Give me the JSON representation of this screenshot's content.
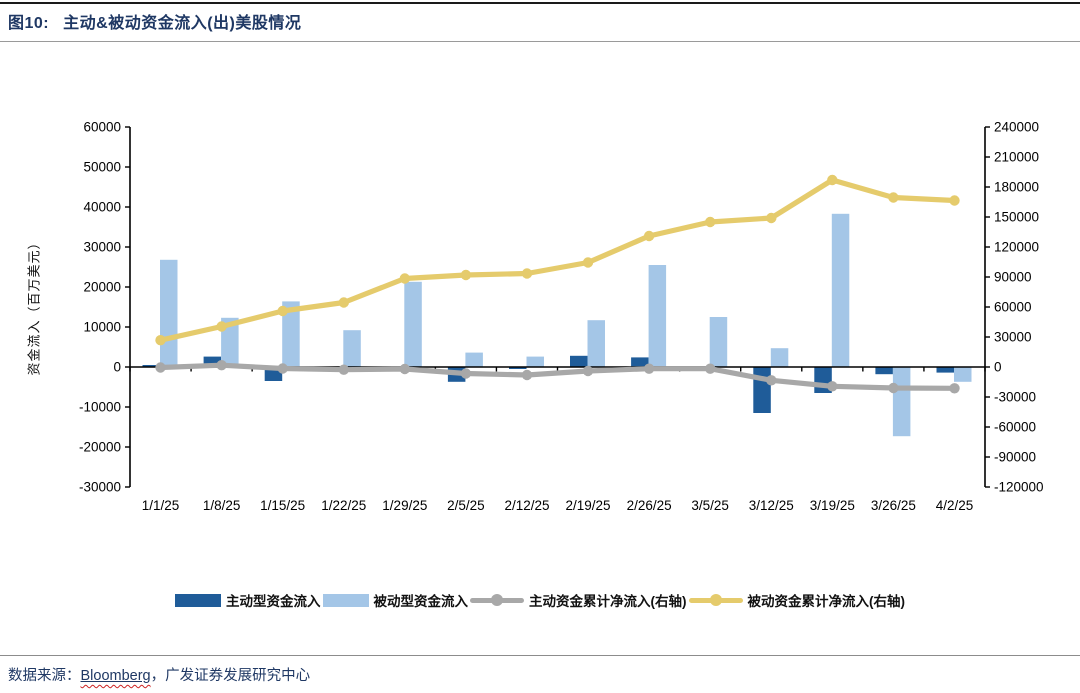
{
  "page": {
    "figure_label": "图10:",
    "title": "主动&被动资金流入(出)美股情况"
  },
  "footer": {
    "prefix": "数据来源：",
    "source": "Bloomberg",
    "suffix": "，广发证券发展研究中心"
  },
  "theme": {
    "title_color": "#1F3864",
    "active_bar_color": "#1F5C99",
    "passive_bar_color": "#A4C6E7",
    "active_line_color": "#A8A8A8",
    "passive_line_color": "#E5CB6C",
    "axis_color": "#000000"
  },
  "chart_data": {
    "type": "bar",
    "title": "主动&被动资金流入(出)美股情况",
    "categories": [
      "1/1/25",
      "1/8/25",
      "1/15/25",
      "1/22/25",
      "1/29/25",
      "2/5/25",
      "2/12/25",
      "2/19/25",
      "2/26/25",
      "3/5/25",
      "3/12/25",
      "3/19/25",
      "3/26/25",
      "4/2/25"
    ],
    "series": [
      {
        "name": "主动型资金流入",
        "type": "bar",
        "axis": "left",
        "color": "#1F5C99",
        "values": [
          500,
          2600,
          -3500,
          -800,
          -300,
          -3700,
          -500,
          2800,
          2400,
          -500,
          -11500,
          -6500,
          -1800,
          -1400
        ]
      },
      {
        "name": "被动型资金流入",
        "type": "bar",
        "axis": "left",
        "color": "#A4C6E7",
        "values": [
          26800,
          12300,
          16400,
          9200,
          21300,
          3600,
          2600,
          11700,
          25500,
          12500,
          4700,
          38300,
          -17300,
          -3700
        ]
      },
      {
        "name": "主动资金累计净流入(右轴)",
        "type": "line",
        "axis": "right",
        "color": "#A8A8A8",
        "values": [
          -500,
          1800,
          -1500,
          -2700,
          -2000,
          -6500,
          -8000,
          -4000,
          -1700,
          -1700,
          -13300,
          -19300,
          -21000,
          -21300
        ]
      },
      {
        "name": "被动资金累计净流入(右轴)",
        "type": "line",
        "axis": "right",
        "color": "#E5CB6C",
        "values": [
          26800,
          40500,
          56000,
          64500,
          88500,
          92000,
          93500,
          104500,
          131000,
          145000,
          149000,
          187000,
          169500,
          166500
        ]
      }
    ],
    "left_axis": {
      "label": "资金流入（百万美元）",
      "min": -30000,
      "max": 60000,
      "step": 10000
    },
    "right_axis": {
      "label": "",
      "min": -120000,
      "max": 240000,
      "step": 30000
    },
    "grid": false,
    "legend_position": "bottom"
  }
}
